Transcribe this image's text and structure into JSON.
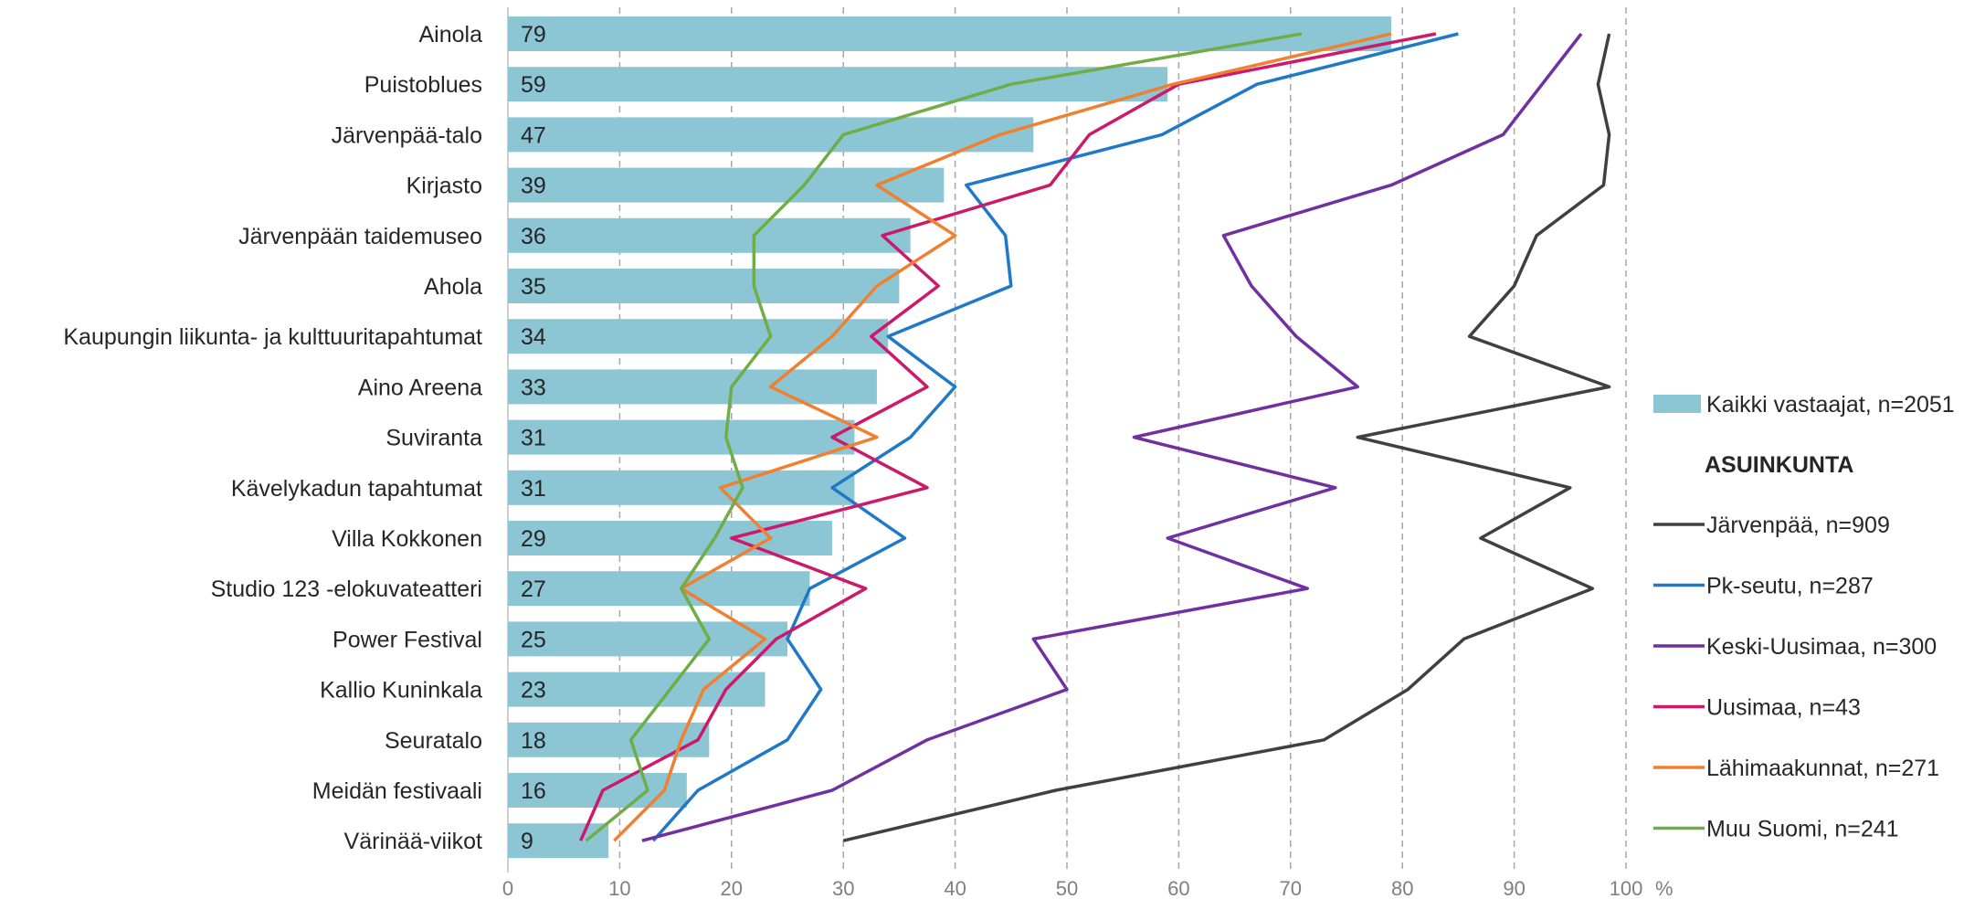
{
  "chart_data": {
    "type": "bar",
    "orientation": "horizontal",
    "categories": [
      "Ainola",
      "Puistoblues",
      "Järvenpää-talo",
      "Kirjasto",
      "Järvenpään taidemuseo",
      "Ahola",
      "Kaupungin liikunta- ja kulttuuritapahtumat",
      "Aino Areena",
      "Suviranta",
      "Kävelykadun tapahtumat",
      "Villa Kokkonen",
      "Studio 123 -elokuvateatteri",
      "Power Festival",
      "Kallio Kuninkala",
      "Seuratalo",
      "Meidän festivaali",
      "Värinää-viikot"
    ],
    "bar_series": {
      "name": "Kaikki vastaajat, n=2051",
      "color": "#8cc6d4",
      "values": [
        79,
        59,
        47,
        39,
        36,
        35,
        34,
        33,
        31,
        31,
        29,
        27,
        25,
        23,
        18,
        16,
        9
      ]
    },
    "line_series": [
      {
        "name": "Järvenpää, n=909",
        "color": "#404040",
        "values": [
          98.5,
          97.5,
          98.5,
          98,
          92,
          90,
          86,
          98.5,
          76,
          95,
          87,
          97,
          85.5,
          80.5,
          73,
          49,
          30
        ]
      },
      {
        "name": "Pk-seutu, n=287",
        "color": "#1f78c8",
        "values": [
          85,
          67,
          58.5,
          41,
          44.5,
          45,
          34,
          40,
          36,
          29,
          35.5,
          27,
          25,
          28,
          25,
          17,
          13
        ]
      },
      {
        "name": "Keski-Uusimaa, n=300",
        "color": "#7030a0",
        "values": [
          96,
          null,
          89,
          79,
          64,
          66.5,
          70.5,
          76,
          56,
          74,
          59,
          71.5,
          47,
          50,
          37.5,
          29,
          12
        ]
      },
      {
        "name": "Uusimaa, n=43",
        "color": "#cc1a6b",
        "values": [
          83,
          60,
          52,
          48.5,
          33.5,
          38.5,
          32.5,
          37.5,
          29,
          37.5,
          20,
          32,
          24,
          19.5,
          17,
          8.5,
          6.5
        ]
      },
      {
        "name": "Lähimaakunnat, n=271",
        "color": "#f08030",
        "values": [
          79,
          59.5,
          44,
          33,
          40,
          33,
          29,
          23.5,
          33,
          19,
          23.5,
          15.5,
          23,
          17.5,
          15.5,
          14,
          9.5
        ]
      },
      {
        "name": "Muu Suomi, n=241",
        "color": "#70ad47",
        "values": [
          71,
          45,
          30,
          26.5,
          22,
          22,
          23.5,
          20,
          19.5,
          21,
          18.5,
          15.5,
          18,
          14.5,
          11,
          12.5,
          7
        ]
      }
    ],
    "legend_group_title": "ASUINKUNTA",
    "x_ticks": [
      "0",
      "10",
      "20",
      "30",
      "40",
      "50",
      "60",
      "70",
      "80",
      "90",
      "100"
    ],
    "x_unit": "%",
    "xlim": [
      0,
      100
    ],
    "grid": "vertical dashed",
    "legend_position": "right"
  }
}
